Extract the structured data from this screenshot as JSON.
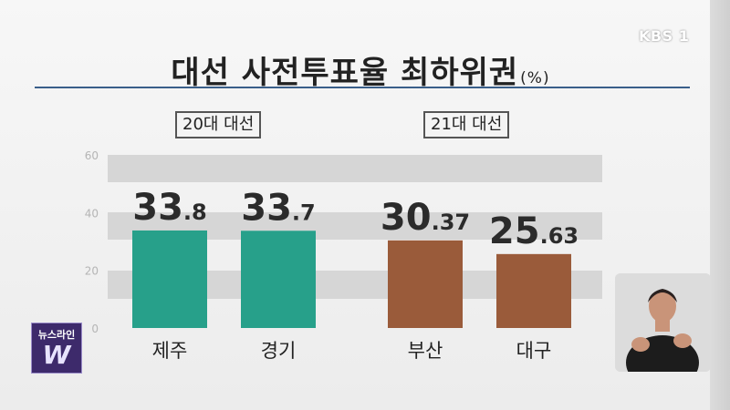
{
  "broadcaster": {
    "logo": "KBS 1"
  },
  "program_badge": {
    "text": "뉴스라인",
    "mark": "W"
  },
  "chart_data": {
    "type": "bar",
    "title": "대선 사전투표율 최하위권",
    "unit": "(%)",
    "ylim": [
      0,
      60
    ],
    "yticks": [
      "60",
      "40",
      "20",
      "0"
    ],
    "grid": true,
    "groups": [
      {
        "label": "20대 대선",
        "color": "#27a08a",
        "bars": [
          {
            "category": "제주",
            "value": 33.8,
            "int": "33",
            "dec": ".8"
          },
          {
            "category": "경기",
            "value": 33.7,
            "int": "33",
            "dec": ".7"
          }
        ]
      },
      {
        "label": "21대 대선",
        "color": "#9a5b3a",
        "bars": [
          {
            "category": "부산",
            "value": 30.37,
            "int": "30",
            "dec": ".37"
          },
          {
            "category": "대구",
            "value": 25.63,
            "int": "25",
            "dec": ".63"
          }
        ]
      }
    ]
  }
}
